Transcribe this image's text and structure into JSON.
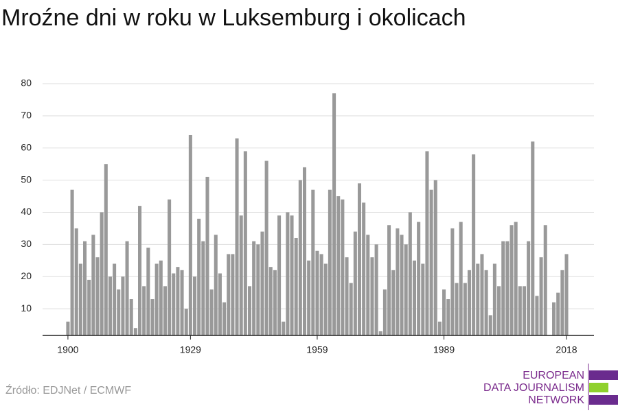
{
  "chart_data": {
    "type": "bar",
    "title": "Mroźne dni w roku w Luksemburg i okolicach",
    "x": [
      1900,
      1901,
      1902,
      1903,
      1904,
      1905,
      1906,
      1907,
      1908,
      1909,
      1910,
      1911,
      1912,
      1913,
      1914,
      1915,
      1916,
      1917,
      1918,
      1919,
      1920,
      1921,
      1922,
      1923,
      1924,
      1925,
      1926,
      1927,
      1928,
      1929,
      1930,
      1931,
      1932,
      1933,
      1934,
      1935,
      1936,
      1937,
      1938,
      1939,
      1940,
      1941,
      1942,
      1943,
      1944,
      1945,
      1946,
      1947,
      1948,
      1949,
      1950,
      1951,
      1952,
      1953,
      1954,
      1955,
      1956,
      1957,
      1958,
      1959,
      1960,
      1961,
      1962,
      1963,
      1964,
      1965,
      1966,
      1967,
      1968,
      1969,
      1970,
      1971,
      1972,
      1973,
      1974,
      1975,
      1976,
      1977,
      1978,
      1979,
      1980,
      1981,
      1982,
      1983,
      1984,
      1985,
      1986,
      1987,
      1988,
      1989,
      1990,
      1991,
      1992,
      1993,
      1994,
      1995,
      1996,
      1997,
      1998,
      1999,
      2000,
      2001,
      2002,
      2003,
      2004,
      2005,
      2006,
      2007,
      2008,
      2009,
      2010,
      2011,
      2012,
      2013,
      2014,
      2015,
      2016,
      2017,
      2018
    ],
    "values": [
      6,
      47,
      35,
      24,
      31,
      19,
      33,
      26,
      40,
      55,
      20,
      24,
      16,
      20,
      31,
      13,
      4,
      42,
      17,
      29,
      13,
      24,
      25,
      17,
      44,
      21,
      23,
      22,
      10,
      64,
      20,
      38,
      31,
      51,
      16,
      33,
      21,
      12,
      27,
      27,
      63,
      39,
      59,
      17,
      31,
      30,
      34,
      56,
      23,
      22,
      39,
      6,
      40,
      39,
      32,
      50,
      54,
      25,
      47,
      28,
      27,
      24,
      47,
      77,
      45,
      44,
      26,
      18,
      34,
      49,
      43,
      33,
      26,
      30,
      3,
      16,
      36,
      22,
      35,
      33,
      30,
      40,
      25,
      37,
      24,
      59,
      47,
      50,
      6,
      16,
      13,
      35,
      18,
      37,
      18,
      22,
      58,
      24,
      27,
      22,
      8,
      24,
      17,
      31,
      31,
      36,
      37,
      17,
      17,
      31,
      62,
      14,
      26,
      36,
      null,
      12,
      15,
      22,
      27
    ],
    "color": "#999999",
    "xlim": [
      1894,
      2024.5
    ],
    "xticks": [
      1900,
      1929,
      1959,
      1989,
      2018
    ],
    "ylim": [
      1.7,
      80
    ],
    "yticks": [
      10,
      20,
      30,
      40,
      50,
      60,
      70,
      80
    ],
    "grid": true
  },
  "footer": {
    "source": "Źródło: EDJNet / ECMWF",
    "logo": [
      "EUROPEAN",
      "DATA JOURNALISM",
      "NETWORK"
    ]
  }
}
